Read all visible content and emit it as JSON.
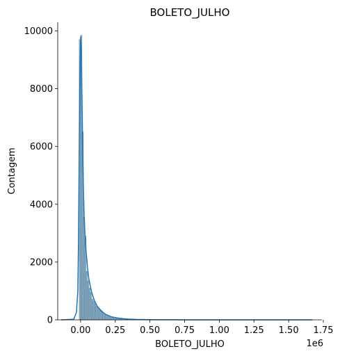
{
  "chart_data": {
    "type": "bar",
    "title": "BOLETO_JULHO",
    "xlabel": "BOLETO_JULHO",
    "ylabel": "Contagem",
    "offset_label": "1e6",
    "xlim": [
      -0.165,
      1.74
    ],
    "ylim": [
      0,
      10300
    ],
    "x_ticks": [
      0.0,
      0.25,
      0.5,
      0.75,
      1.0,
      1.25,
      1.5,
      1.75
    ],
    "x_tick_labels": [
      "0.00",
      "0.25",
      "0.50",
      "0.75",
      "1.00",
      "1.25",
      "1.50",
      "1.75"
    ],
    "y_ticks": [
      0,
      2000,
      4000,
      6000,
      8000,
      10000
    ],
    "y_tick_labels": [
      "0",
      "2000",
      "4000",
      "6000",
      "8000",
      "10000"
    ],
    "bin_width": 0.01,
    "bin_starts": [
      -0.01,
      0.0,
      0.01,
      0.02,
      0.03,
      0.04,
      0.05,
      0.06,
      0.07,
      0.08,
      0.09,
      0.1,
      0.11,
      0.12,
      0.13,
      0.14,
      0.15,
      0.16,
      0.17,
      0.18,
      0.19,
      0.2,
      0.21,
      0.22,
      0.23,
      0.24,
      0.25,
      0.26,
      0.27,
      0.28,
      0.29,
      0.3,
      0.31,
      0.32,
      0.33,
      0.34,
      0.35,
      0.36,
      0.37,
      0.38,
      0.39,
      0.4
    ],
    "values": [
      9700,
      9850,
      6500,
      3550,
      2900,
      1680,
      1350,
      1100,
      950,
      720,
      650,
      560,
      470,
      430,
      390,
      350,
      300,
      250,
      210,
      180,
      160,
      130,
      120,
      100,
      90,
      80,
      70,
      60,
      50,
      45,
      40,
      35,
      30,
      25,
      22,
      20,
      17,
      15,
      13,
      11,
      10,
      8
    ],
    "kde_x": [
      -0.14,
      -0.05,
      -0.03,
      -0.02,
      -0.015,
      -0.01,
      -0.005,
      0.0,
      0.005,
      0.01,
      0.015,
      0.02,
      0.025,
      0.03,
      0.04,
      0.05,
      0.06,
      0.08,
      0.1,
      0.12,
      0.15,
      0.18,
      0.22,
      0.26,
      0.3,
      0.35,
      0.4,
      0.5,
      0.6,
      0.8,
      1.0,
      1.3,
      1.67
    ],
    "kde_y": [
      0,
      20,
      250,
      1000,
      2800,
      5900,
      8600,
      9800,
      9300,
      7700,
      6000,
      4600,
      3700,
      3100,
      2350,
      1800,
      1400,
      950,
      660,
      470,
      300,
      190,
      110,
      70,
      45,
      25,
      14,
      6,
      3,
      1,
      0,
      0,
      0
    ],
    "colors": {
      "bar_fill": "#1f77b4",
      "line": "#1f77b4"
    },
    "grid": false,
    "legend": "none"
  }
}
